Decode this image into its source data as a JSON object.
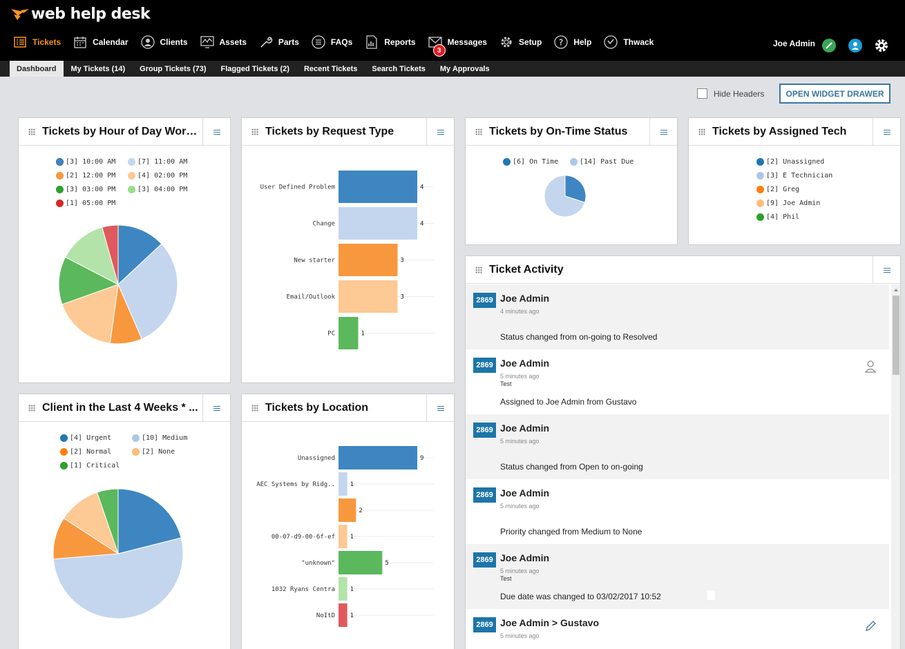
{
  "app": {
    "logo_text": "web help desk"
  },
  "nav": {
    "items": [
      {
        "label": "Tickets",
        "icon": "list-icon"
      },
      {
        "label": "Calendar",
        "icon": "calendar-icon"
      },
      {
        "label": "Clients",
        "icon": "user-icon"
      },
      {
        "label": "Assets",
        "icon": "chart-icon"
      },
      {
        "label": "Parts",
        "icon": "wrench-icon"
      },
      {
        "label": "FAQs",
        "icon": "faq-icon"
      },
      {
        "label": "Reports",
        "icon": "report-icon"
      },
      {
        "label": "Messages",
        "icon": "envelope-icon",
        "badge": "3"
      },
      {
        "label": "Setup",
        "icon": "gear-icon"
      },
      {
        "label": "Help",
        "icon": "help-icon"
      },
      {
        "label": "Thwack",
        "icon": "thwack-icon"
      }
    ],
    "user_name": "Joe Admin"
  },
  "subnav": {
    "tabs": [
      "Dashboard",
      "My Tickets (14)",
      "Group Tickets (73)",
      "Flagged Tickets (2)",
      "Recent Tickets",
      "Search Tickets",
      "My Approvals"
    ]
  },
  "toolbar": {
    "hide_headers_label": "Hide Headers",
    "drawer_button": "OPEN WIDGET DRAWER"
  },
  "colors": {
    "blue": "#3e86c1",
    "light_blue": "#c3d6ee",
    "orange": "#f7983e",
    "light_orange": "#fdc994",
    "green": "#5cb85c",
    "light_green": "#b3e3a8",
    "red": "#e0595c",
    "accent": "#1c75a8"
  },
  "widgets": {
    "hour": {
      "title": "Tickets by Hour of Day Work...",
      "legend": [
        "[3] 10:00 AM",
        "[7] 11:00 AM",
        "[2] 12:00 PM",
        "[4] 02:00 PM",
        "[3] 03:00 PM",
        "[3] 04:00 PM",
        "[1] 05:00 PM"
      ]
    },
    "request": {
      "title": "Tickets by Request Type"
    },
    "ontime": {
      "title": "Tickets by On-Time Status",
      "legend": [
        "[6] On Time",
        "[14] Past Due"
      ]
    },
    "tech": {
      "title": "Tickets by Assigned Tech",
      "legend": [
        "[2] Unassigned",
        "[3] E Technician",
        "[2] Greg",
        "[9] Joe Admin",
        "[4] Phil"
      ]
    },
    "client": {
      "title": "Client in the Last 4 Weeks * ...",
      "legend": [
        "[4] Urgent",
        "[10] Medium",
        "[2] Normal",
        "[2] None",
        "[1] Critical"
      ]
    },
    "location": {
      "title": "Tickets by Location"
    },
    "activity": {
      "title": "Ticket Activity",
      "items": [
        {
          "ticket": "2869",
          "name": "Joe Admin",
          "time": "4 minutes ago",
          "note": "",
          "message": "Status changed from on-going to Resolved"
        },
        {
          "ticket": "2869",
          "name": "Joe Admin",
          "time": "5 minutes ago",
          "note": "Test",
          "message": "Assigned to Joe Admin from Gustavo"
        },
        {
          "ticket": "2869",
          "name": "Joe Admin",
          "time": "5 minutes ago",
          "note": "",
          "message": "Status changed from Open to on-going"
        },
        {
          "ticket": "2869",
          "name": "Joe Admin",
          "time": "5 minutes ago",
          "note": "",
          "message": "Priority changed from Medium to None"
        },
        {
          "ticket": "2869",
          "name": "Joe Admin",
          "time": "5 minutes ago",
          "note": "Test",
          "message": "Due date was changed to 03/02/2017 10:52"
        },
        {
          "ticket": "2869",
          "name": "Joe Admin > Gustavo",
          "time": "5 minutes ago",
          "note": "",
          "message": ""
        }
      ]
    }
  },
  "chart_data": [
    {
      "type": "pie",
      "categories": [
        "10:00 AM",
        "11:00 AM",
        "12:00 PM",
        "02:00 PM",
        "03:00 PM",
        "04:00 PM",
        "05:00 PM"
      ],
      "values": [
        3,
        7,
        2,
        4,
        3,
        3,
        1
      ],
      "colors": [
        "#3e86c1",
        "#c3d6ee",
        "#f7983e",
        "#fdc994",
        "#5cb85c",
        "#b3e3a8",
        "#e0595c"
      ]
    },
    {
      "type": "bar",
      "categories": [
        "User Defined Problem",
        "Change",
        "New starter",
        "Email/Outlook",
        "PC"
      ],
      "values": [
        4,
        4,
        3,
        3,
        1
      ],
      "colors": [
        "#3e86c1",
        "#c3d6ee",
        "#f7983e",
        "#fdc994",
        "#5cb85c"
      ]
    },
    {
      "type": "pie",
      "categories": [
        "On Time",
        "Past Due"
      ],
      "values": [
        6,
        14
      ],
      "colors": [
        "#3e86c1",
        "#c3d6ee"
      ]
    },
    {
      "type": "pie",
      "categories": [
        "Urgent",
        "Medium",
        "Normal",
        "None",
        "Critical"
      ],
      "values": [
        4,
        10,
        2,
        2,
        1
      ],
      "colors": [
        "#3e86c1",
        "#c3d6ee",
        "#f7983e",
        "#fdc994",
        "#5cb85c"
      ]
    },
    {
      "type": "bar",
      "categories": [
        "Unassigned",
        "AEC Systems by Ridg..",
        "",
        "00-07-d9-00-6f-ef",
        "\"unknown\"",
        "1032 Ryans Centra",
        "NoItD"
      ],
      "values": [
        9,
        1,
        2,
        1,
        5,
        1,
        1
      ],
      "colors": [
        "#3e86c1",
        "#c3d6ee",
        "#f7983e",
        "#fdc994",
        "#5cb85c",
        "#b3e3a8",
        "#e0595c"
      ]
    }
  ]
}
